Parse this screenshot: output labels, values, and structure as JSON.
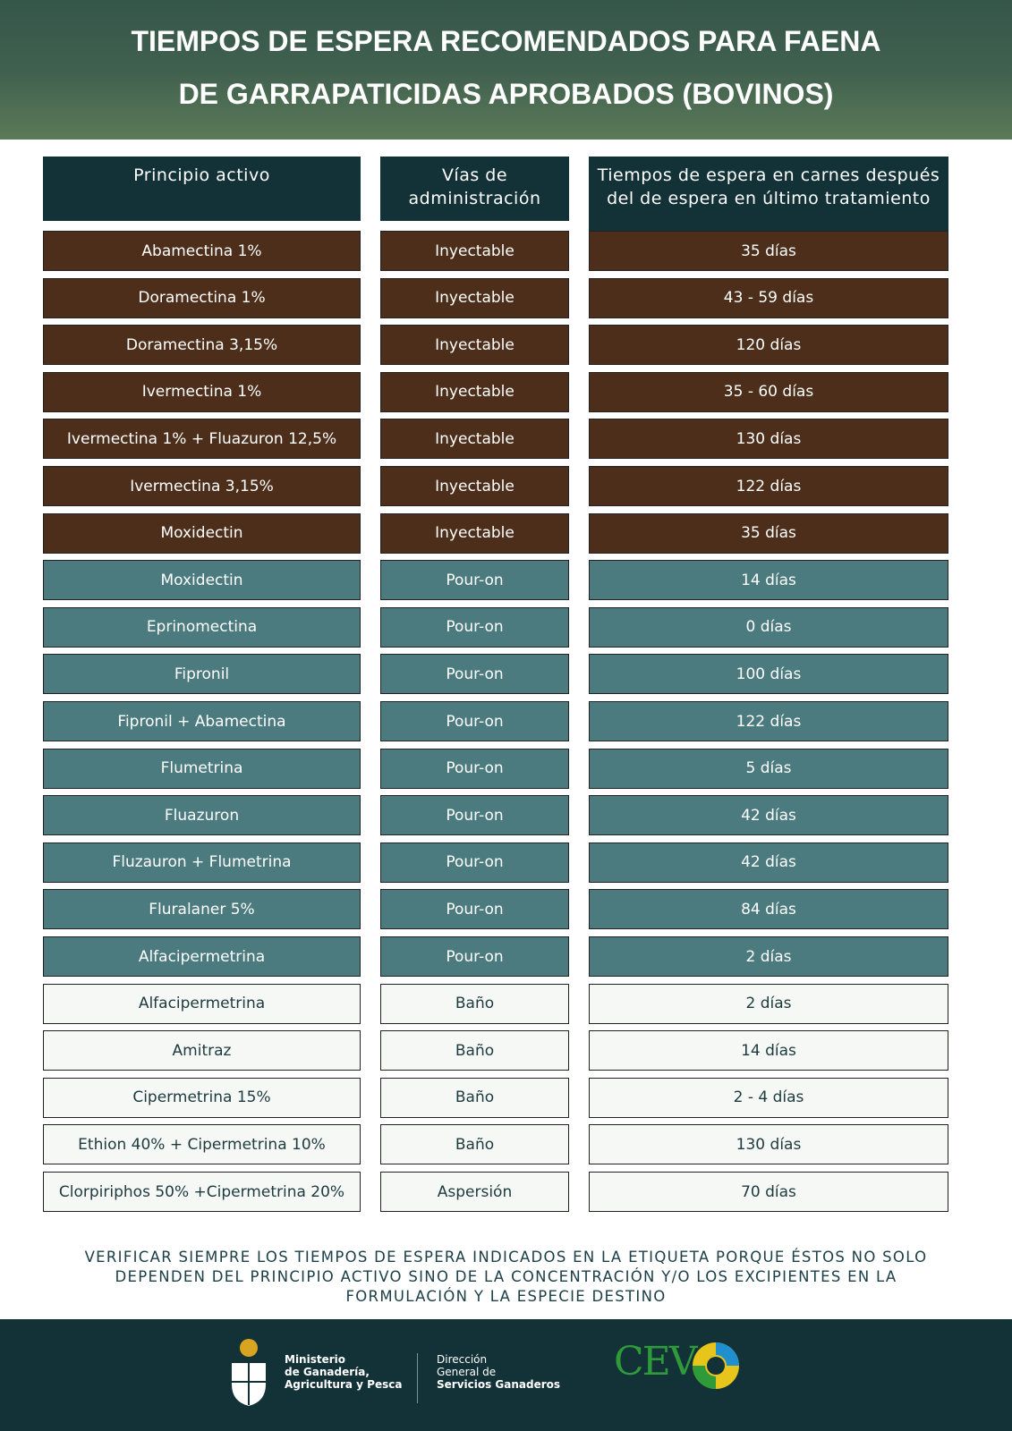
{
  "header": {
    "title_lines": [
      "TIEMPOS DE ESPERA RECOMENDADOS PARA FAENA",
      "DE GARRAPATICIDAS APROBADOS (BOVINOS)"
    ]
  },
  "table": {
    "headers": [
      "Principio activo",
      "Vías de administración",
      "Tiempos de espera en carnes después del de espera en último tratamiento"
    ],
    "rows": [
      [
        "Abamectina 1%",
        "Inyectable",
        "35 días"
      ],
      [
        "Doramectina 1%",
        "Inyectable",
        "43 - 59 días"
      ],
      [
        "Doramectina 3,15%",
        "Inyectable",
        "120 días"
      ],
      [
        "Ivermectina 1%",
        "Inyectable",
        "35 - 60 días"
      ],
      [
        "Ivermectina 1% + Fluazuron 12,5%",
        "Inyectable",
        "130 días"
      ],
      [
        "Ivermectina 3,15%",
        "Inyectable",
        "122 días"
      ],
      [
        "Moxidectin",
        "Inyectable",
        "35 días"
      ],
      [
        "Moxidectin",
        "Pour-on",
        "14 días"
      ],
      [
        "Eprinomectina",
        "Pour-on",
        "0 días"
      ],
      [
        "Fipronil",
        "Pour-on",
        "100 días"
      ],
      [
        "Fipronil + Abamectina",
        "Pour-on",
        "122 días"
      ],
      [
        "Flumetrina",
        "Pour-on",
        "5 días"
      ],
      [
        "Fluazuron",
        "Pour-on",
        "42 días"
      ],
      [
        "Fluzauron + Flumetrina",
        "Pour-on",
        "42 días"
      ],
      [
        "Fluralaner 5%",
        "Pour-on",
        "84 días"
      ],
      [
        "Alfacipermetrina",
        "Pour-on",
        "2 días"
      ],
      [
        "Alfacipermetrina",
        "Baño",
        "2 días"
      ],
      [
        "Amitraz",
        "Baño",
        "14 días"
      ],
      [
        "Cipermetrina 15%",
        "Baño",
        "2 - 4 días"
      ],
      [
        "Ethion 40% + Cipermetrina 10%",
        "Baño",
        "130 días"
      ],
      [
        "Clorpiriphos 50% +Cipermetrina 20%",
        "Aspersión",
        "70 días"
      ]
    ]
  },
  "note": "VERIFICAR SIEMPRE LOS TIEMPOS DE ESPERA INDICADOS EN LA ETIQUETA PORQUE ÉSTOS NO SOLO DEPENDEN DEL PRINCIPIO ACTIVO SINO DE LA CONCENTRACIÓN Y/O LOS EXCIPIENTES EN LA FORMULACIÓN Y LA ESPECIE DESTINO",
  "footer": {
    "ministry_lines": [
      "Ministerio",
      "de Ganadería,",
      "Agricultura y Pesca"
    ],
    "direction_lines": [
      "Dirección",
      "General de",
      "Servicios Ganaderos"
    ],
    "cev": "CEV"
  }
}
